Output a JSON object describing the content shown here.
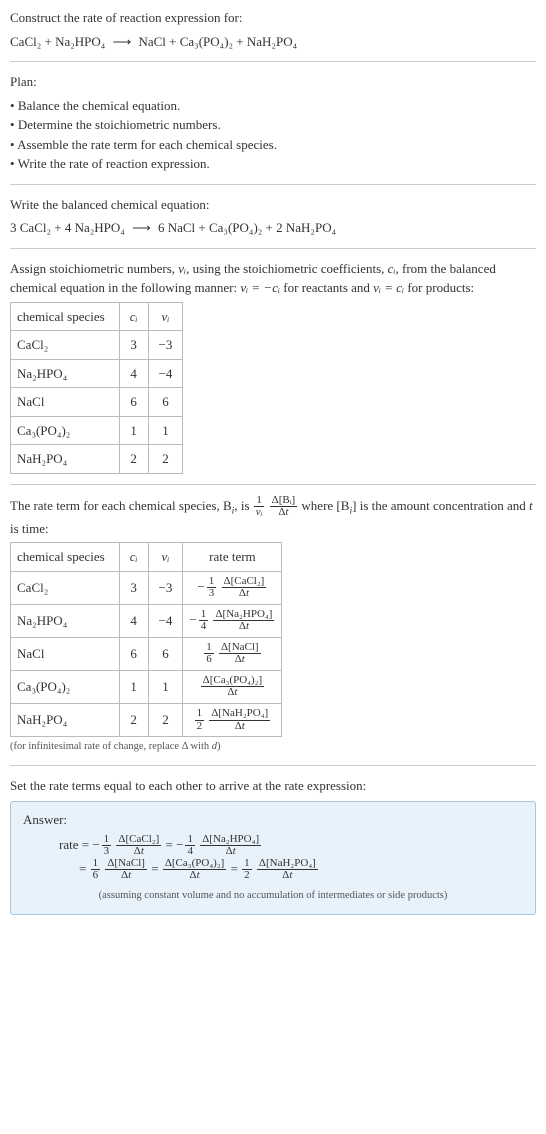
{
  "prompt": "Construct the rate of reaction expression for:",
  "equation_unbalanced": {
    "lhs": [
      "CaCl₂",
      "Na₂HPO₄"
    ],
    "rhs": [
      "NaCl",
      "Ca₃(PO₄)₂",
      "NaH₂PO₄"
    ]
  },
  "plan_label": "Plan:",
  "plan_items": [
    "Balance the chemical equation.",
    "Determine the stoichiometric numbers.",
    "Assemble the rate term for each chemical species.",
    "Write the rate of reaction expression."
  ],
  "balanced_label": "Write the balanced chemical equation:",
  "equation_balanced": {
    "lhs": [
      [
        "3",
        "CaCl₂"
      ],
      [
        "4",
        "Na₂HPO₄"
      ]
    ],
    "rhs": [
      [
        "6",
        "NaCl"
      ],
      [
        "",
        "Ca₃(PO₄)₂"
      ],
      [
        "2",
        "NaH₂PO₄"
      ]
    ]
  },
  "assign_text_1": "Assign stoichiometric numbers, ",
  "assign_text_2": ", using the stoichiometric coefficients, ",
  "assign_text_3": ", from the balanced chemical equation in the following manner: ",
  "assign_text_4": " for reactants and ",
  "assign_text_5": " for products:",
  "table1": {
    "headers": [
      "chemical species",
      "cᵢ",
      "νᵢ"
    ],
    "rows": [
      [
        "CaCl₂",
        "3",
        "−3"
      ],
      [
        "Na₂HPO₄",
        "4",
        "−4"
      ],
      [
        "NaCl",
        "6",
        "6"
      ],
      [
        "Ca₃(PO₄)₂",
        "1",
        "1"
      ],
      [
        "NaH₂PO₄",
        "2",
        "2"
      ]
    ]
  },
  "rate_term_text_1": "The rate term for each chemical species, B",
  "rate_term_text_2": ", is ",
  "rate_term_text_3": " where [B",
  "rate_term_text_4": "] is the amount concentration and ",
  "rate_term_text_5": " is time:",
  "table2": {
    "headers": [
      "chemical species",
      "cᵢ",
      "νᵢ",
      "rate term"
    ],
    "rows": [
      {
        "species": "CaCl₂",
        "c": "3",
        "nu": "−3",
        "neg": true,
        "coef_num": "1",
        "coef_den": "3",
        "delta": "Δ[CaCl₂]"
      },
      {
        "species": "Na₂HPO₄",
        "c": "4",
        "nu": "−4",
        "neg": true,
        "coef_num": "1",
        "coef_den": "4",
        "delta": "Δ[Na₂HPO₄]"
      },
      {
        "species": "NaCl",
        "c": "6",
        "nu": "6",
        "neg": false,
        "coef_num": "1",
        "coef_den": "6",
        "delta": "Δ[NaCl]"
      },
      {
        "species": "Ca₃(PO₄)₂",
        "c": "1",
        "nu": "1",
        "neg": false,
        "coef_num": "",
        "coef_den": "",
        "delta": "Δ[Ca₃(PO₄)₂]"
      },
      {
        "species": "NaH₂PO₄",
        "c": "2",
        "nu": "2",
        "neg": false,
        "coef_num": "1",
        "coef_den": "2",
        "delta": "Δ[NaH₂PO₄]"
      }
    ]
  },
  "note_infinitesimal": "(for infinitesimal rate of change, replace Δ with d)",
  "set_equal_text": "Set the rate terms equal to each other to arrive at the rate expression:",
  "answer_label": "Answer:",
  "rate_word": "rate",
  "t_label": "t",
  "delta_t": "Δt",
  "answer_line1": [
    {
      "neg": true,
      "coef_num": "1",
      "coef_den": "3",
      "delta": "Δ[CaCl₂]"
    },
    {
      "neg": true,
      "coef_num": "1",
      "coef_den": "4",
      "delta": "Δ[Na₂HPO₄]"
    }
  ],
  "answer_line2": [
    {
      "neg": false,
      "coef_num": "1",
      "coef_den": "6",
      "delta": "Δ[NaCl]"
    },
    {
      "neg": false,
      "coef_num": "",
      "coef_den": "",
      "delta": "Δ[Ca₃(PO₄)₂]"
    },
    {
      "neg": false,
      "coef_num": "1",
      "coef_den": "2",
      "delta": "Δ[NaH₂PO₄]"
    }
  ],
  "answer_note": "(assuming constant volume and no accumulation of intermediates or side products)",
  "sym_nu_i": "νᵢ",
  "sym_c_i": "cᵢ",
  "sym_i": "i",
  "eq_reactants": "νᵢ = −cᵢ",
  "eq_products": "νᵢ = cᵢ",
  "d_italic": "d",
  "Bi_num": "Δ[Bᵢ]"
}
